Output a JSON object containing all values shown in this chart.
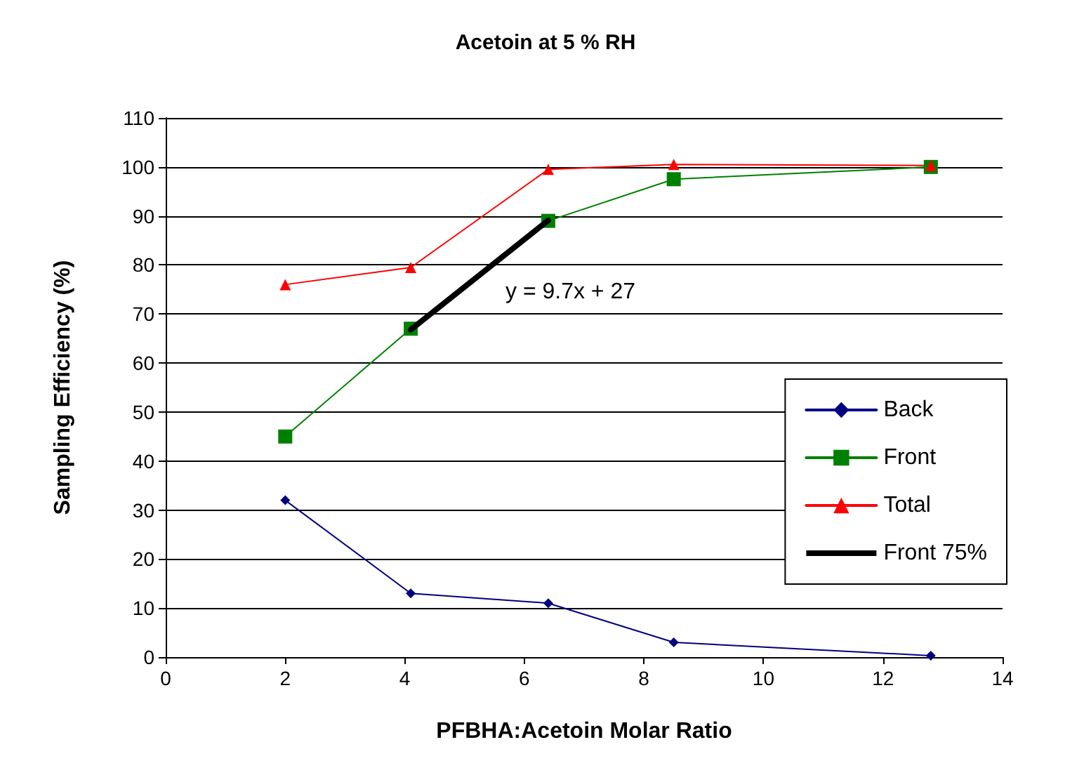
{
  "chart_data": {
    "type": "line",
    "title": "Acetoin at 5 % RH",
    "xlabel": "PFBHA:Acetoin Molar Ratio",
    "ylabel": "Sampling Efficiency (%)",
    "x": [
      2.0,
      4.1,
      6.4,
      8.5,
      12.8
    ],
    "series": [
      {
        "name": "Back",
        "color": "#000080",
        "marker": "diamond",
        "values": [
          32,
          13,
          11,
          3,
          0.3
        ]
      },
      {
        "name": "Front",
        "color": "#008000",
        "marker": "square",
        "values": [
          45,
          67,
          89,
          97.5,
          100
        ]
      },
      {
        "name": "Total",
        "color": "#ff0000",
        "marker": "triangle",
        "values": [
          76,
          79.5,
          99.5,
          100.5,
          100.3
        ]
      },
      {
        "name": "Front 75%",
        "color": "#000000",
        "marker": "none",
        "x": [
          4.1,
          6.4
        ],
        "values": [
          66.8,
          89.1
        ]
      }
    ],
    "annotations": [
      "y = 9.7x + 27"
    ],
    "xlim": [
      0,
      14
    ],
    "xticks": [
      0,
      2,
      4,
      6,
      8,
      10,
      12,
      14
    ],
    "ylim": [
      0,
      110
    ],
    "yticks": [
      0,
      10,
      20,
      30,
      40,
      50,
      60,
      70,
      80,
      90,
      100,
      110
    ],
    "grid": "y",
    "legend": "right"
  }
}
